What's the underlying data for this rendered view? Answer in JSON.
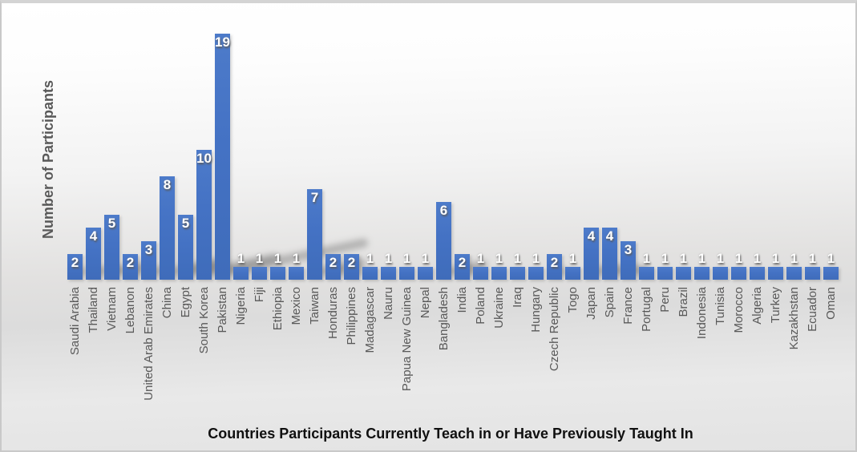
{
  "chart_data": {
    "type": "bar",
    "title": "",
    "xlabel": "Countries Participants Currently Teach in or Have Previously Taught In",
    "ylabel": "Number of Participants",
    "categories": [
      "Saudi Arabia",
      "Thailand",
      "Vietnam",
      "Lebanon",
      "United Arab Emirates",
      "China",
      "Egypt",
      "South Korea",
      "Pakistan",
      "Nigeria",
      "Fiji",
      "Ethiopia",
      "Mexico",
      "Taiwan",
      "Honduras",
      "Philippines",
      "Madagascar",
      "Nauru",
      "Papua New Guinea",
      "Nepal",
      "Bangladesh",
      "India",
      "Poland",
      "Ukraine",
      "Iraq",
      "Hungary",
      "Czech Republic",
      "Togo",
      "Japan",
      "Spain",
      "France",
      "Portugal",
      "Peru",
      "Brazil",
      "Indonesia",
      "Tunisia",
      "Morocco",
      "Algeria",
      "Turkey",
      "Kazakhstan",
      "Ecuador",
      "Oman"
    ],
    "values": [
      2,
      4,
      5,
      2,
      3,
      8,
      5,
      10,
      19,
      1,
      1,
      1,
      1,
      7,
      2,
      2,
      1,
      1,
      1,
      1,
      6,
      2,
      1,
      1,
      1,
      1,
      2,
      1,
      4,
      4,
      3,
      1,
      1,
      1,
      1,
      1,
      1,
      1,
      1,
      1,
      1,
      1
    ],
    "ylim": [
      0,
      20
    ],
    "grid": false,
    "legend": false,
    "y_axis_tick_labels_visible": false,
    "data_labels_position": "inside-end-white",
    "bar_color": "#4472C4",
    "data_label_color": "#FFFFFF",
    "category_label_color": "#595959",
    "axis_title_color": "#595959",
    "x_title_color": "#101010"
  }
}
